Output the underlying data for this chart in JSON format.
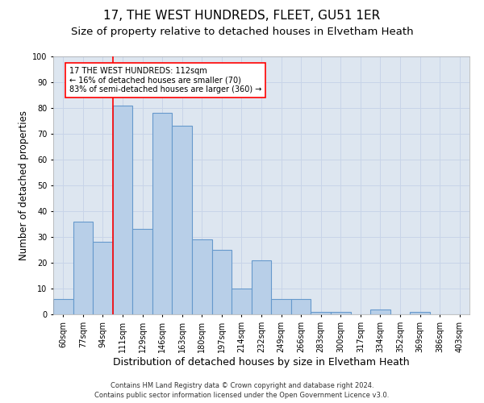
{
  "title": "17, THE WEST HUNDREDS, FLEET, GU51 1ER",
  "subtitle": "Size of property relative to detached houses in Elvetham Heath",
  "xlabel": "Distribution of detached houses by size in Elvetham Heath",
  "ylabel": "Number of detached properties",
  "categories": [
    "60sqm",
    "77sqm",
    "94sqm",
    "111sqm",
    "129sqm",
    "146sqm",
    "163sqm",
    "180sqm",
    "197sqm",
    "214sqm",
    "232sqm",
    "249sqm",
    "266sqm",
    "283sqm",
    "300sqm",
    "317sqm",
    "334sqm",
    "352sqm",
    "369sqm",
    "386sqm",
    "403sqm"
  ],
  "values": [
    6,
    36,
    28,
    81,
    33,
    78,
    73,
    29,
    25,
    10,
    21,
    6,
    6,
    1,
    1,
    0,
    2,
    0,
    1,
    0,
    0
  ],
  "bar_color": "#b8cfe8",
  "bar_edgecolor": "#6699cc",
  "bar_linewidth": 0.8,
  "grid_color": "#c8d4e8",
  "bg_color": "#dde6f0",
  "title_fontsize": 11,
  "subtitle_fontsize": 9.5,
  "xlabel_fontsize": 9,
  "ylabel_fontsize": 8.5,
  "tick_fontsize": 7,
  "ylim": [
    0,
    100
  ],
  "yticks": [
    0,
    10,
    20,
    30,
    40,
    50,
    60,
    70,
    80,
    90,
    100
  ],
  "red_line_index": 3,
  "annotation_line1": "17 THE WEST HUNDREDS: 112sqm",
  "annotation_line2": "← 16% of detached houses are smaller (70)",
  "annotation_line3": "83% of semi-detached houses are larger (360) →",
  "footer_line1": "Contains HM Land Registry data © Crown copyright and database right 2024.",
  "footer_line2": "Contains public sector information licensed under the Open Government Licence v3.0."
}
